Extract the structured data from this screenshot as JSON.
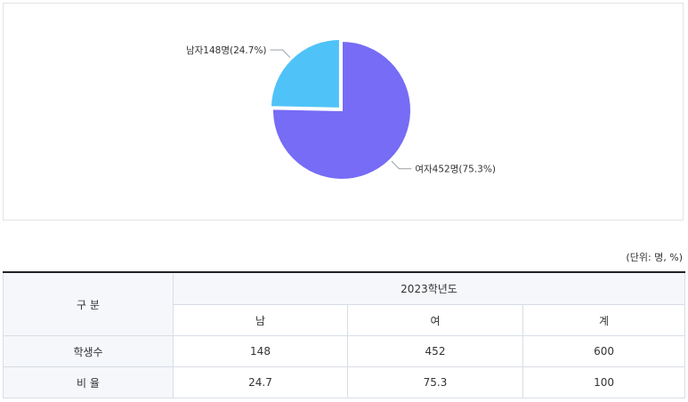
{
  "chart_data": {
    "type": "pie",
    "slices": [
      {
        "name": "여자",
        "value": 452,
        "percent": 75.3,
        "label": "여자452명(75.3%)",
        "color": "#766cf5"
      },
      {
        "name": "남자",
        "value": 148,
        "percent": 24.7,
        "label": "남자148명(24.7%)",
        "color": "#4fc3f7"
      }
    ],
    "start": "12 o'clock, clockwise: 여자 then 남자 (남자 slice pulled out)"
  },
  "unit_note": "(단위: 명, %)",
  "table": {
    "corner": "구 분",
    "year": "2023학년도",
    "columns": [
      "남",
      "여",
      "계"
    ],
    "rows": [
      {
        "label": "학생수",
        "values": [
          "148",
          "452",
          "600"
        ]
      },
      {
        "label": "비 율",
        "values": [
          "24.7",
          "75.3",
          "100"
        ]
      }
    ]
  }
}
